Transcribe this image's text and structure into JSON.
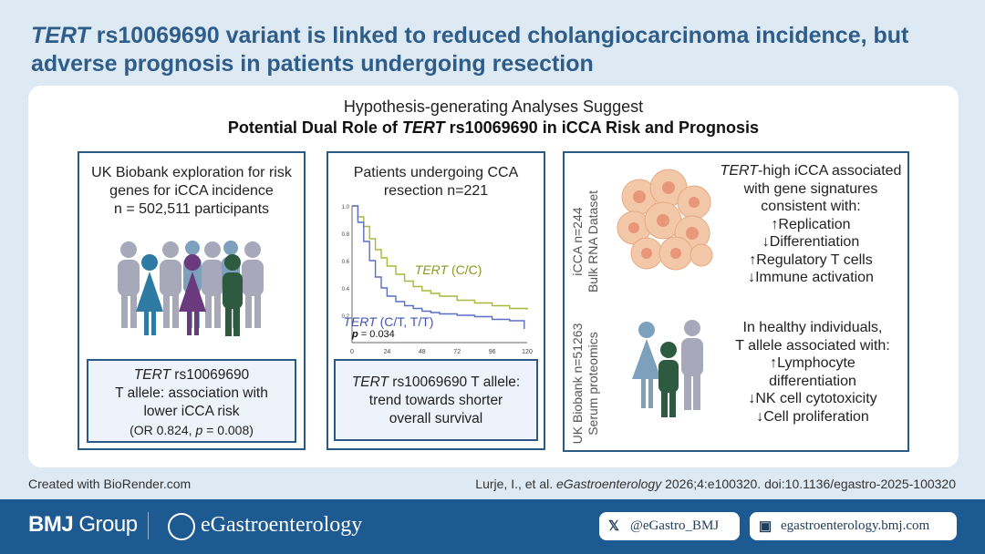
{
  "title": {
    "gene": "TERT",
    "rest_line1": " rs10069690 variant is linked to reduced cholangiocarcinoma incidence, but",
    "line2": "adverse prognosis in patients undergoing resection"
  },
  "heading": {
    "line1": "Hypothesis-generating Analyses Suggest",
    "line2_pre": "Potential Dual Role of ",
    "line2_gene": "TERT",
    "line2_post": " rs10069690 in iCCA Risk and Prognosis"
  },
  "panel1": {
    "text": [
      "UK Biobank exploration for risk",
      "genes for iCCA incidence",
      "n = 502,511 participants"
    ],
    "box": {
      "gene": "TERT",
      "line1_rest": " rs10069690",
      "line2": "T allele: association with",
      "line3": "lower iCCA risk",
      "line4_pre": "(OR 0.824, ",
      "line4_p": "p",
      "line4_post": " = 0.008)"
    }
  },
  "panel2": {
    "text": [
      "Patients undergoing CCA",
      "resection n=221"
    ],
    "box": {
      "gene": "TERT",
      "line1_rest": " rs10069690 T allele:",
      "line2": "trend towards shorter",
      "line3": "overall survival"
    }
  },
  "panel3": {
    "top": {
      "side": [
        "iCCA n=244",
        "Bulk RNA Dataset"
      ],
      "gene": "TERT",
      "line1_rest": "-high iCCA associated",
      "lines": [
        "with gene signatures",
        "consistent with:",
        "↑Replication",
        "↓Differentiation",
        "↑Regulatory T cells",
        "↓Immune activation"
      ]
    },
    "bottom": {
      "side": [
        "UK Biobank n=51263",
        "Serum proteomics"
      ],
      "lines": [
        "In healthy individuals,",
        "T allele associated with:",
        "↑Lymphocyte",
        "differentiation",
        "↓NK cell cytotoxicity",
        "↓Cell proliferation"
      ]
    }
  },
  "chart_data": {
    "type": "line",
    "x_ticks": [
      "0",
      "24",
      "48",
      "72",
      "96",
      "120"
    ],
    "y_ticks": [
      "1.0",
      "0.8",
      "0.6",
      "0.4",
      "0.2"
    ],
    "xlim": [
      0,
      120
    ],
    "ylim": [
      0,
      1.0
    ],
    "series": [
      {
        "name": "TERT (C/C)",
        "color": "#a7b83a",
        "x": [
          0,
          4,
          8,
          12,
          16,
          20,
          24,
          30,
          36,
          42,
          48,
          54,
          60,
          72,
          84,
          96,
          108,
          120
        ],
        "y": [
          1.0,
          0.92,
          0.85,
          0.76,
          0.68,
          0.62,
          0.56,
          0.5,
          0.45,
          0.41,
          0.38,
          0.36,
          0.34,
          0.31,
          0.29,
          0.27,
          0.25,
          0.24
        ]
      },
      {
        "name": "TERT (C/T, T/T)",
        "color": "#5a6fc4",
        "x": [
          0,
          4,
          8,
          12,
          16,
          20,
          24,
          30,
          36,
          42,
          48,
          54,
          60,
          72,
          84,
          96,
          108,
          118
        ],
        "y": [
          1.0,
          0.88,
          0.74,
          0.6,
          0.48,
          0.4,
          0.34,
          0.3,
          0.27,
          0.25,
          0.23,
          0.22,
          0.21,
          0.2,
          0.19,
          0.17,
          0.16,
          0.1
        ]
      }
    ],
    "annotation": {
      "p_label": "p",
      "p_value": " = 0.034"
    },
    "labels": {
      "cc_gene": "TERT",
      "cc_rest": " (C/C)",
      "ct_gene": "TERT",
      "ct_rest": " (C/T, T/T)"
    }
  },
  "footer": {
    "left": "Created with BioRender.com",
    "citation_pre": "Lurje, I., et al. ",
    "citation_journal": "eGastroenterology",
    "citation_post": " 2026;4:e100320. doi:10.1136/egastro-2025-100320"
  },
  "bottom_bar": {
    "bmj": "BMJ",
    "group": " Group",
    "journal": "eGastroenterology",
    "twitter": "@eGastro_BMJ",
    "website": "egastroenterology.bmj.com",
    "colors": {
      "bar": "#1e5a92",
      "accent": "#2b5a86"
    }
  }
}
